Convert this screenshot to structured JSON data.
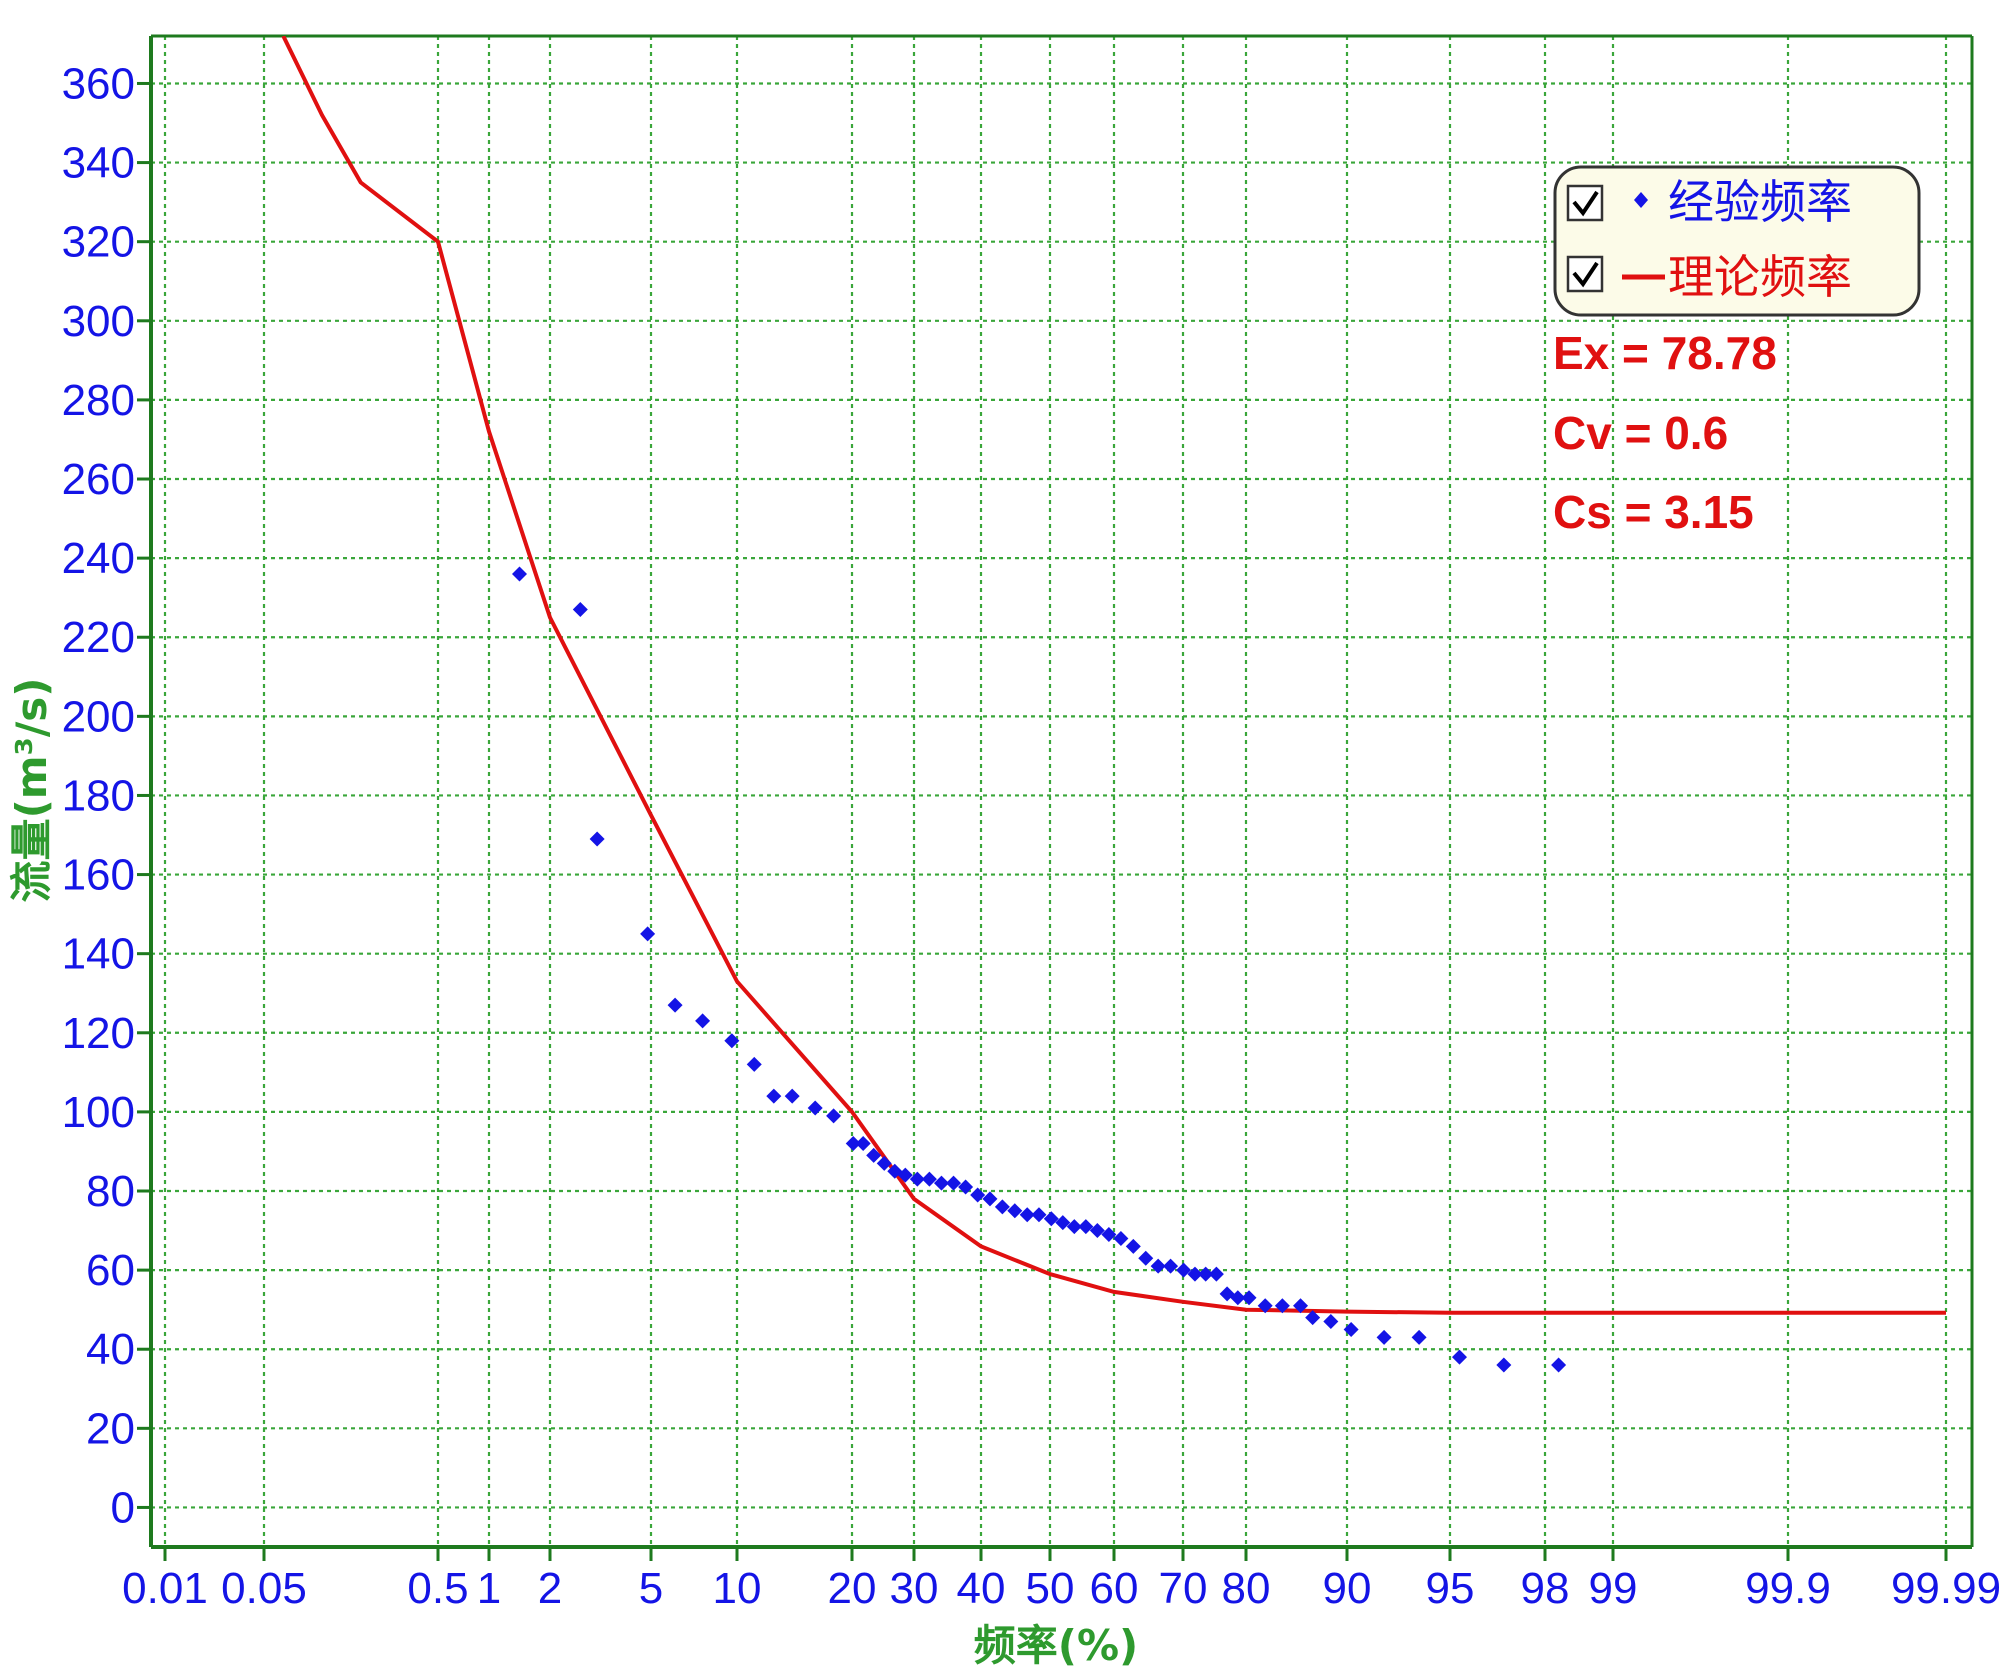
{
  "chart_data": {
    "type": "scatter",
    "title": "",
    "xlabel": "频率(%)",
    "ylabel": "流量(m³/s)",
    "x_scale": "probability",
    "ylim": [
      -10,
      372
    ],
    "yticks": [
      0,
      20,
      40,
      60,
      80,
      100,
      120,
      140,
      160,
      180,
      200,
      220,
      240,
      260,
      280,
      300,
      320,
      340,
      360
    ],
    "xticks": [
      0.01,
      0.05,
      0.5,
      1,
      2,
      5,
      10,
      20,
      30,
      40,
      50,
      60,
      70,
      80,
      90,
      95,
      98,
      99,
      99.9,
      99.99
    ],
    "xtick_labels": [
      "0.01",
      "0.05",
      "0.5",
      "1",
      "2",
      "5",
      "10",
      "20",
      "30",
      "40",
      "50",
      "60",
      "70",
      "80",
      "90",
      "95",
      "98",
      "99",
      "99.9",
      "99.99"
    ],
    "grid": true,
    "legend_position": "top-right",
    "series": [
      {
        "name": "经验频率",
        "kind": "scatter",
        "color": "#1414e6",
        "marker": "diamond",
        "points": [
          [
            1.5,
            236
          ],
          [
            2.9,
            227
          ],
          [
            3.4,
            169
          ],
          [
            4.9,
            145
          ],
          [
            6.4,
            127
          ],
          [
            8.0,
            123
          ],
          [
            9.7,
            118
          ],
          [
            11.5,
            112
          ],
          [
            13.2,
            104
          ],
          [
            14.8,
            104
          ],
          [
            16.8,
            101
          ],
          [
            18.4,
            99
          ],
          [
            20.2,
            92
          ],
          [
            21.8,
            92
          ],
          [
            23.5,
            89
          ],
          [
            25.2,
            87
          ],
          [
            26.9,
            85
          ],
          [
            28.6,
            84
          ],
          [
            30.5,
            83
          ],
          [
            32.3,
            83
          ],
          [
            34.1,
            82
          ],
          [
            35.9,
            82
          ],
          [
            37.7,
            81
          ],
          [
            39.5,
            79
          ],
          [
            41.3,
            78
          ],
          [
            43.1,
            76
          ],
          [
            44.9,
            75
          ],
          [
            46.7,
            74
          ],
          [
            48.4,
            74
          ],
          [
            50.2,
            73
          ],
          [
            52.0,
            72
          ],
          [
            53.8,
            71
          ],
          [
            55.6,
            71
          ],
          [
            57.4,
            70
          ],
          [
            59.2,
            69
          ],
          [
            61.0,
            68
          ],
          [
            62.8,
            66
          ],
          [
            64.6,
            63
          ],
          [
            66.4,
            61
          ],
          [
            68.2,
            61
          ],
          [
            70.1,
            60
          ],
          [
            71.9,
            59
          ],
          [
            73.6,
            59
          ],
          [
            75.3,
            59
          ],
          [
            77.0,
            54
          ],
          [
            78.7,
            53
          ],
          [
            80.3,
            53
          ],
          [
            81.9,
            51
          ],
          [
            83.6,
            51
          ],
          [
            85.4,
            51
          ],
          [
            86.6,
            48
          ],
          [
            88.4,
            47
          ],
          [
            90.2,
            45
          ],
          [
            91.8,
            43
          ],
          [
            93.5,
            43
          ],
          [
            95.3,
            38
          ],
          [
            96.7,
            36
          ],
          [
            98.2,
            36
          ]
        ]
      },
      {
        "name": "理论频率",
        "kind": "line",
        "color": "#e01010",
        "points": [
          [
            0.1,
            372
          ],
          [
            0.2,
            352
          ],
          [
            0.3,
            335
          ],
          [
            0.5,
            320
          ],
          [
            1,
            272
          ],
          [
            2,
            225
          ],
          [
            5,
            175
          ],
          [
            10,
            133
          ],
          [
            20,
            100
          ],
          [
            30,
            78
          ],
          [
            40,
            66
          ],
          [
            50,
            59
          ],
          [
            60,
            54.5
          ],
          [
            70,
            52
          ],
          [
            80,
            50
          ],
          [
            90,
            49.5
          ],
          [
            95,
            49.2
          ],
          [
            99,
            49.2
          ],
          [
            99.9,
            49.2
          ],
          [
            99.99,
            49.2
          ]
        ]
      }
    ],
    "annotations": [
      "Ex = 78.78",
      "Cv = 0.6",
      "Cs = 3.15"
    ]
  },
  "colors": {
    "axis": "#1e7a1e",
    "grid": "#3aa63a",
    "tick_text": "#1414e6",
    "title_text": "#2e9a2e",
    "legend_bg": "#fcfbe8"
  }
}
